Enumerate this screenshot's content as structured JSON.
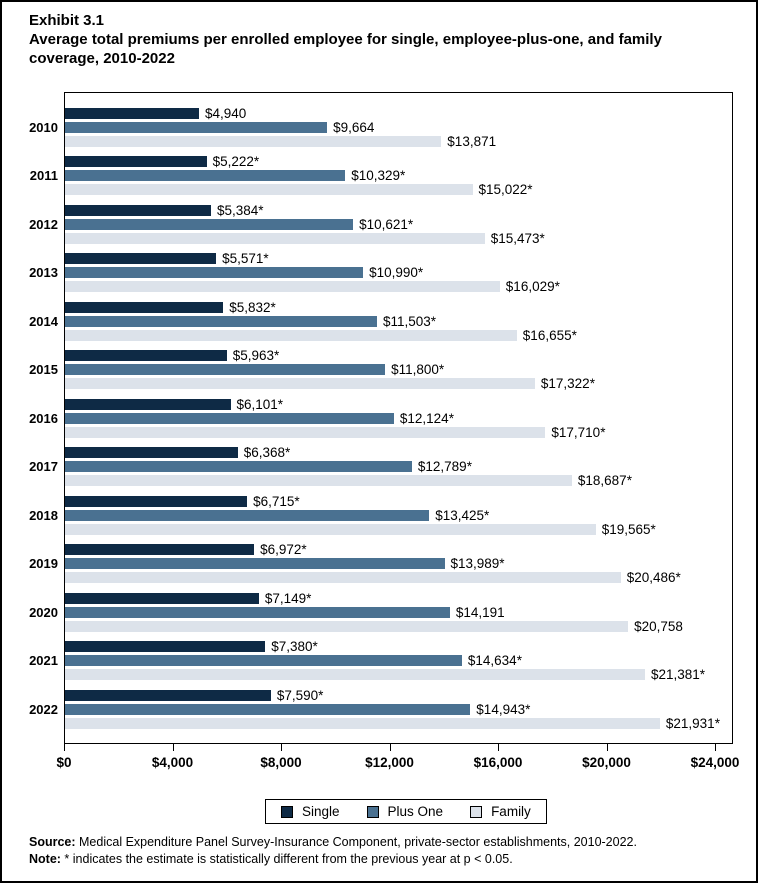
{
  "header": {
    "exhibit": "Exhibit 3.1",
    "title": "Average total premiums per enrolled employee for single, employee-plus-one, and family coverage, 2010-2022",
    "title_lines": [
      "Average total premiums per enrolled employee for single, employee-plus-one, and family",
      "coverage, 2010-2022"
    ]
  },
  "chart_data": {
    "type": "bar",
    "orientation": "horizontal",
    "title": "Average total premiums per enrolled employee for single, employee-plus-one, and family coverage, 2010-2022",
    "categories": [
      "2010",
      "2011",
      "2012",
      "2013",
      "2014",
      "2015",
      "2016",
      "2017",
      "2018",
      "2019",
      "2020",
      "2021",
      "2022"
    ],
    "series": [
      {
        "name": "Single",
        "color": "#0e2a45",
        "values": [
          4940,
          5222,
          5384,
          5571,
          5832,
          5963,
          6101,
          6368,
          6715,
          6972,
          7149,
          7380,
          7590
        ],
        "labels": [
          "$4,940",
          "$5,222*",
          "$5,384*",
          "$5,571*",
          "$5,832*",
          "$5,963*",
          "$6,101*",
          "$6,368*",
          "$6,715*",
          "$6,972*",
          "$7,149*",
          "$7,380*",
          "$7,590*"
        ]
      },
      {
        "name": "Plus One",
        "color": "#4a7191",
        "values": [
          9664,
          10329,
          10621,
          10990,
          11503,
          11800,
          12124,
          12789,
          13425,
          13989,
          14191,
          14634,
          14943
        ],
        "labels": [
          "$9,664",
          "$10,329*",
          "$10,621*",
          "$10,990*",
          "$11,503*",
          "$11,800*",
          "$12,124*",
          "$12,789*",
          "$13,425*",
          "$13,989*",
          "$14,191",
          "$14,634*",
          "$14,943*"
        ]
      },
      {
        "name": "Family",
        "color": "#dce2ea",
        "values": [
          13871,
          15022,
          15473,
          16029,
          16655,
          17322,
          17710,
          18687,
          19565,
          20486,
          20758,
          21381,
          21931
        ],
        "labels": [
          "$13,871",
          "$15,022*",
          "$15,473*",
          "$16,029*",
          "$16,655*",
          "$17,322*",
          "$17,710*",
          "$18,687*",
          "$19,565*",
          "$20,486*",
          "$20,758",
          "$21,381*",
          "$21,931*"
        ]
      }
    ],
    "xlabel": "",
    "ylabel": "",
    "xlim": [
      0,
      24000
    ],
    "x_ticks": [
      "$0",
      "$4,000",
      "$8,000",
      "$12,000",
      "$16,000",
      "$20,000",
      "$24,000"
    ],
    "grid": false,
    "legend_position": "bottom",
    "note_marker": "*"
  },
  "footer": {
    "source_label": "Source:",
    "source_text": " Medical Expenditure Panel Survey-Insurance Component, private-sector establishments, 2010-2022.",
    "note_label": "Note:",
    "note_text": " * indicates the estimate is statistically different from the previous year at p < 0.05."
  }
}
